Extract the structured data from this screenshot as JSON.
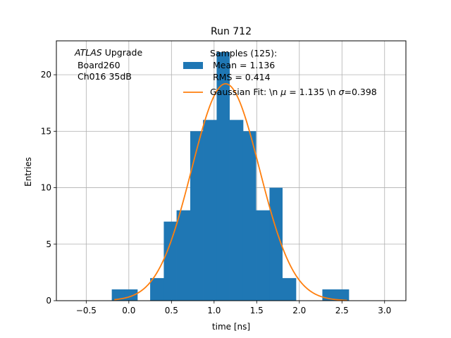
{
  "chart_data": {
    "type": "bar",
    "title": "Run 712",
    "xlabel": "time [ns]",
    "ylabel": "Entries",
    "xlim": [
      -0.85,
      3.25
    ],
    "ylim": [
      0,
      23
    ],
    "grid": true,
    "x_ticks": [
      -0.5,
      0.0,
      0.5,
      1.0,
      1.5,
      2.0,
      2.5,
      3.0
    ],
    "x_tick_labels": [
      "−0.5",
      "0.0",
      "0.5",
      "1.0",
      "1.5",
      "2.0",
      "2.5",
      "3.0"
    ],
    "y_ticks": [
      0,
      5,
      10,
      15,
      20
    ],
    "y_tick_labels": [
      "0",
      "5",
      "10",
      "15",
      "20"
    ],
    "bin_edges": [
      -0.2,
      -0.05,
      0.1,
      0.25,
      0.41,
      0.56,
      0.72,
      0.87,
      1.03,
      1.18,
      1.34,
      1.49,
      1.65,
      1.8,
      1.96,
      2.11,
      2.27,
      2.42,
      2.58
    ],
    "counts": [
      1,
      1,
      0,
      2,
      7,
      8,
      15,
      16,
      22,
      16,
      15,
      8,
      10,
      2,
      0,
      0,
      1,
      1
    ],
    "histogram_color": "#1f77b4",
    "fit": {
      "mu": 1.135,
      "sigma": 0.398,
      "amplitude": 19.2,
      "x_range": [
        -0.17,
        2.56
      ],
      "color": "#ff7f0e"
    },
    "annotation": {
      "line1_italic": "ATLAS",
      "line1_rest": " Upgrade",
      "line2": " Board260",
      "line3": " Ch016 35dB"
    },
    "legend": {
      "placement": "upper-center",
      "entries": [
        {
          "kind": "patch",
          "lines": [
            "Samples (125):",
            " Mean = 1.136",
            " RMS = 0.414"
          ]
        },
        {
          "kind": "line",
          "prefix": "Gaussian Fit: \\n ",
          "mu_symbol": "μ",
          "mid": " = 1.135 \\n ",
          "sigma_symbol": "σ",
          "suffix": "=0.398"
        }
      ]
    }
  }
}
